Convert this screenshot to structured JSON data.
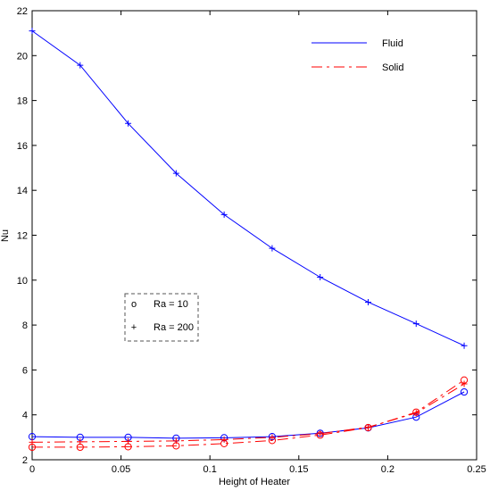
{
  "chart_data": {
    "type": "line",
    "xlabel": "Height of Heater",
    "ylabel": "Nu",
    "xlim": [
      0,
      0.25
    ],
    "ylim": [
      2,
      22
    ],
    "x_ticks": [
      "0",
      "0.05",
      "0.1",
      "0.15",
      "0.2",
      "0.25"
    ],
    "y_ticks": [
      "2",
      "4",
      "6",
      "8",
      "10",
      "12",
      "14",
      "16",
      "18",
      "20",
      "22"
    ],
    "x_tick_values": [
      0,
      0.05,
      0.1,
      0.15,
      0.2,
      0.25
    ],
    "y_tick_values": [
      2,
      4,
      6,
      8,
      10,
      12,
      14,
      16,
      18,
      20,
      22
    ],
    "grid": false,
    "x": [
      0,
      0.027,
      0.054,
      0.081,
      0.108,
      0.135,
      0.162,
      0.189,
      0.216,
      0.243
    ],
    "series": [
      {
        "medium": "Fluid",
        "ra": "10",
        "marker": "o",
        "color": "#0000ff",
        "values": [
          3.03,
          3.0,
          3.0,
          2.96,
          2.98,
          3.03,
          3.18,
          3.42,
          3.9,
          5.02
        ]
      },
      {
        "medium": "Fluid",
        "ra": "200",
        "marker": "+",
        "color": "#0000ff",
        "values": [
          21.1,
          19.57,
          16.98,
          14.76,
          12.92,
          11.42,
          10.13,
          9.02,
          8.06,
          7.08
        ]
      },
      {
        "medium": "Solid",
        "ra": "10",
        "marker": "o",
        "color": "#ff0000",
        "values": [
          2.56,
          2.56,
          2.58,
          2.62,
          2.72,
          2.86,
          3.1,
          3.43,
          4.12,
          5.55
        ]
      },
      {
        "medium": "Solid",
        "ra": "200",
        "marker": "+",
        "color": "#ff0000",
        "values": [
          2.78,
          2.8,
          2.82,
          2.84,
          2.9,
          3.0,
          3.16,
          3.45,
          4.08,
          5.38
        ]
      }
    ],
    "legend_lines": {
      "position": "top-right",
      "entries": [
        {
          "label": "Fluid",
          "color": "#0000ff",
          "style": "solid"
        },
        {
          "label": "Solid",
          "color": "#ff0000",
          "style": "dashed"
        }
      ]
    },
    "legend_markers": {
      "position": "center-left",
      "entries": [
        {
          "symbol": "o",
          "label": "Ra = 10"
        },
        {
          "symbol": "+",
          "label": "Ra = 200"
        }
      ]
    }
  }
}
